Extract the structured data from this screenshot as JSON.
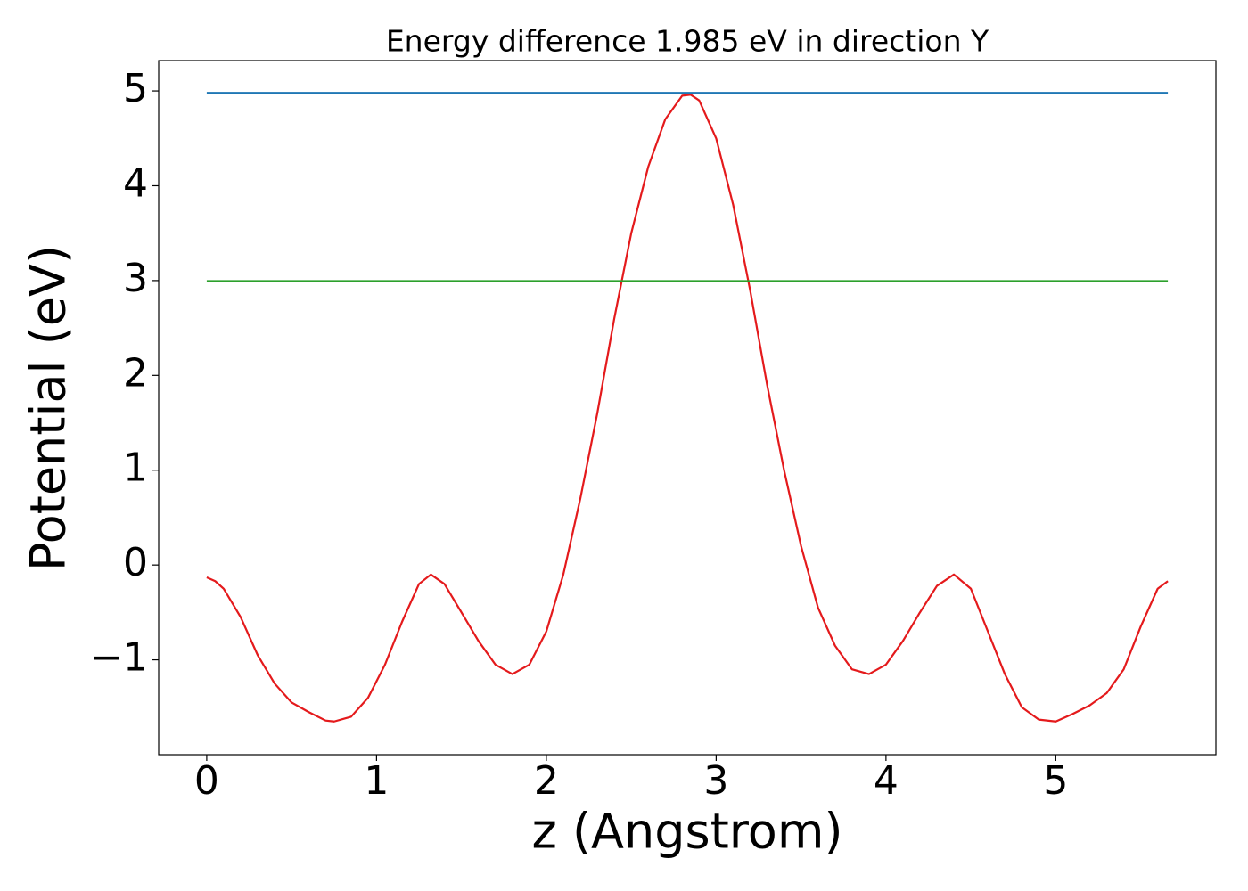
{
  "chart_data": {
    "type": "line",
    "title": "Energy difference 1.985 eV in direction Y",
    "xlabel": "z (Angstrom)",
    "ylabel": "Potential (eV)",
    "xlim": [
      -0.283,
      5.943
    ],
    "ylim": [
      -2.0,
      5.32
    ],
    "xticks": [
      0,
      1,
      2,
      3,
      4,
      5
    ],
    "yticks": [
      {
        "value": -1,
        "label": "−1"
      },
      0,
      1,
      2,
      3,
      4,
      5
    ],
    "grid": false,
    "series": [
      {
        "color": "#e41a1c",
        "x": [
          0,
          0.05,
          0.1,
          0.2,
          0.3,
          0.4,
          0.5,
          0.6,
          0.7,
          0.75,
          0.85,
          0.95,
          1.05,
          1.15,
          1.25,
          1.32,
          1.4,
          1.5,
          1.6,
          1.7,
          1.8,
          1.9,
          2.0,
          2.1,
          2.2,
          2.3,
          2.4,
          2.5,
          2.6,
          2.7,
          2.8,
          2.85,
          2.9,
          3.0,
          3.1,
          3.2,
          3.3,
          3.4,
          3.5,
          3.6,
          3.7,
          3.8,
          3.9,
          4.0,
          4.1,
          4.2,
          4.3,
          4.4,
          4.5,
          4.6,
          4.7,
          4.8,
          4.9,
          5.0,
          5.1,
          5.2,
          5.3,
          5.4,
          5.5,
          5.6,
          5.66
        ],
        "values": [
          -0.13,
          -0.17,
          -0.25,
          -0.55,
          -0.95,
          -1.25,
          -1.45,
          -1.55,
          -1.64,
          -1.65,
          -1.6,
          -1.4,
          -1.05,
          -0.6,
          -0.2,
          -0.1,
          -0.2,
          -0.5,
          -0.8,
          -1.05,
          -1.15,
          -1.05,
          -0.7,
          -0.1,
          0.7,
          1.6,
          2.6,
          3.5,
          4.2,
          4.7,
          4.95,
          4.96,
          4.9,
          4.5,
          3.8,
          2.9,
          1.9,
          1.0,
          0.2,
          -0.45,
          -0.85,
          -1.1,
          -1.15,
          -1.05,
          -0.8,
          -0.5,
          -0.22,
          -0.1,
          -0.25,
          -0.7,
          -1.15,
          -1.5,
          -1.63,
          -1.65,
          -1.57,
          -1.48,
          -1.35,
          -1.1,
          -0.65,
          -0.25,
          -0.17
        ]
      },
      {
        "color": "#1f77b4",
        "x": [
          0,
          5.66
        ],
        "values": [
          4.98,
          4.98
        ]
      },
      {
        "color": "#2ca02c",
        "x": [
          0,
          5.66
        ],
        "values": [
          2.995,
          2.995
        ]
      }
    ]
  }
}
